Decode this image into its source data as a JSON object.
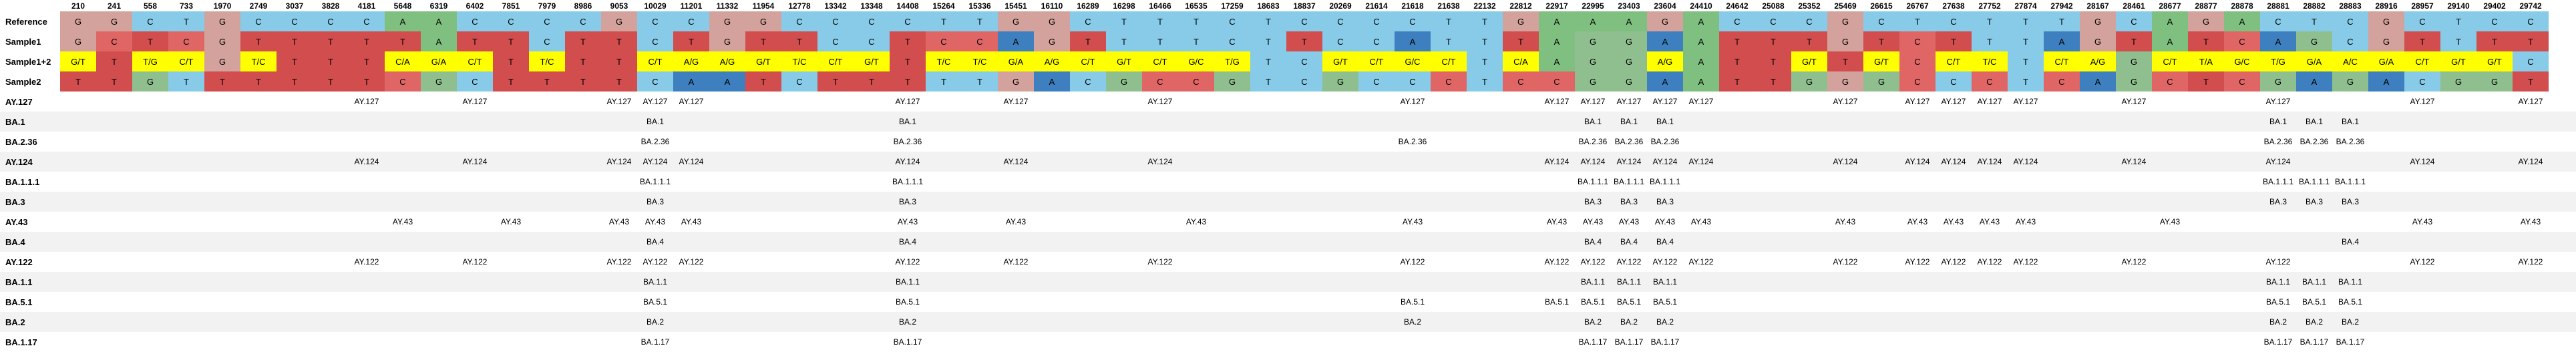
{
  "positions": [
    "210",
    "241",
    "558",
    "733",
    "1970",
    "2749",
    "3037",
    "3828",
    "4181",
    "5648",
    "6319",
    "6402",
    "7851",
    "7979",
    "8986",
    "9053",
    "10029",
    "11201",
    "11332",
    "11954",
    "12778",
    "13342",
    "13348",
    "14408",
    "15264",
    "15336",
    "15451",
    "16110",
    "16289",
    "16298",
    "16466",
    "16535",
    "17259",
    "18683",
    "18837",
    "20269",
    "21614",
    "21618",
    "21638",
    "22132",
    "22812",
    "22917",
    "22995",
    "23403",
    "23604",
    "24410",
    "24642",
    "25088",
    "25352",
    "25469",
    "26615",
    "26767",
    "27638",
    "27752",
    "27874",
    "27942",
    "28167",
    "28461",
    "28677",
    "28877",
    "28878",
    "28881",
    "28882",
    "28883",
    "28916",
    "28957",
    "29140",
    "29402",
    "29742"
  ],
  "colors": {
    "G": "#d4a29c",
    "C": "#87cbe8",
    "T": "#87cbe8",
    "A": "#7fbf7f",
    "het": "#ffff00",
    "mutA": "#3d7fbf",
    "mutAlt": "#8fbf8f",
    "mutC": "#e06666",
    "mutT": "#d24d4d"
  },
  "sequence_rows": [
    {
      "label": "Reference",
      "cells": [
        "G",
        "G",
        "C",
        "T",
        "G",
        "C",
        "C",
        "C",
        "C",
        "A",
        "A",
        "C",
        "C",
        "C",
        "C",
        "G",
        "C",
        "C",
        "G",
        "G",
        "C",
        "C",
        "C",
        "C",
        "T",
        "T",
        "G",
        "G",
        "C",
        "T",
        "T",
        "T",
        "C",
        "T",
        "C",
        "C",
        "C",
        "C",
        "T",
        "T",
        "G",
        "A",
        "A",
        "A",
        "G",
        "A",
        "C",
        "C",
        "C",
        "G",
        "C",
        "T",
        "C",
        "T",
        "T",
        "T",
        "G",
        "C",
        "A",
        "G",
        "A",
        "C",
        "T",
        "C",
        "G",
        "C",
        "T",
        "C",
        "C"
      ]
    },
    {
      "label": "Sample1",
      "cells": [
        "G",
        "C",
        "T",
        "C",
        "G",
        "T",
        "T",
        "T",
        "T",
        "T",
        "A",
        "T",
        "T",
        "C",
        "T",
        "T",
        "C",
        "T",
        "G",
        "T",
        "T",
        "C",
        "C",
        "T",
        "C",
        "C",
        "A",
        "G",
        "T",
        "T",
        "T",
        "T",
        "C",
        "T",
        "T",
        "C",
        "C",
        "A",
        "T",
        "T",
        "T",
        "A",
        "G",
        "G",
        "A",
        "A",
        "T",
        "T",
        "T",
        "G",
        "T",
        "C",
        "T",
        "T",
        "T",
        "A",
        "G",
        "T",
        "A",
        "T",
        "C",
        "A",
        "G",
        "C",
        "G",
        "T",
        "T",
        "T",
        "T"
      ]
    },
    {
      "label": "Sample1+2",
      "cells": [
        "G/T",
        "T",
        "T/G",
        "C/T",
        "G",
        "T/C",
        "T",
        "T",
        "T",
        "C/A",
        "G/A",
        "C/T",
        "T",
        "T/C",
        "T",
        "T",
        "C/T",
        "A/G",
        "A/G",
        "G/T",
        "T/C",
        "C/T",
        "G/T",
        "T",
        "T/C",
        "T/C",
        "G/A",
        "A/G",
        "C/T",
        "G/T",
        "C/T",
        "G/C",
        "T/G",
        "T",
        "C",
        "G/T",
        "C/T",
        "G/C",
        "C/T",
        "T",
        "C/A",
        "A",
        "G",
        "G",
        "A/G",
        "A",
        "T",
        "T",
        "G/T",
        "T",
        "G/T",
        "C",
        "C/T",
        "T/C",
        "T",
        "C/T",
        "A/G",
        "G",
        "C/T",
        "T/A",
        "G/C",
        "T/G",
        "G/A",
        "A/C",
        "G/A",
        "C/T",
        "G/T",
        "G/T",
        "C"
      ]
    },
    {
      "label": "Sample2",
      "cells": [
        "T",
        "T",
        "G",
        "T",
        "T",
        "T",
        "T",
        "T",
        "T",
        "C",
        "G",
        "C",
        "T",
        "T",
        "T",
        "T",
        "C",
        "A",
        "A",
        "T",
        "C",
        "T",
        "T",
        "T",
        "T",
        "T",
        "G",
        "A",
        "C",
        "G",
        "C",
        "C",
        "G",
        "T",
        "C",
        "G",
        "C",
        "C",
        "C",
        "T",
        "C",
        "C",
        "G",
        "G",
        "A",
        "A",
        "T",
        "T",
        "G",
        "G",
        "G",
        "C",
        "C",
        "C",
        "T",
        "C",
        "A",
        "G",
        "C",
        "T",
        "C",
        "G",
        "A",
        "G",
        "A",
        "C",
        "G",
        "G",
        "T"
      ]
    }
  ],
  "lineage_rows": [
    {
      "label": "AY.127",
      "values": [
        "",
        "",
        "",
        "",
        "",
        "",
        "",
        "",
        "AY.127",
        "",
        "",
        "AY.127",
        "",
        "",
        "",
        "AY.127",
        "AY.127",
        "AY.127",
        "",
        "",
        "",
        "",
        "",
        "AY.127",
        "",
        "",
        "AY.127",
        "",
        "",
        "",
        "AY.127",
        "",
        "",
        "",
        "",
        "",
        "",
        "AY.127",
        "",
        "",
        "",
        "AY.127",
        "AY.127",
        "AY.127",
        "AY.127",
        "AY.127",
        "",
        "",
        "",
        "AY.127",
        "",
        "AY.127",
        "AY.127",
        "AY.127",
        "AY.127",
        "",
        "",
        "AY.127",
        "",
        "",
        "",
        "AY.127",
        "",
        "",
        "",
        "AY.127",
        "",
        "",
        "AY.127"
      ]
    },
    {
      "label": "BA.1",
      "values": [
        "",
        "",
        "",
        "",
        "",
        "",
        "",
        "",
        "",
        "",
        "",
        "",
        "",
        "",
        "",
        "",
        "BA.1",
        "",
        "",
        "",
        "",
        "",
        "",
        "BA.1",
        "",
        "",
        "",
        "",
        "",
        "",
        "",
        "",
        "",
        "",
        "",
        "",
        "",
        "",
        "",
        "",
        "",
        "",
        "BA.1",
        "BA.1",
        "BA.1",
        "",
        "",
        "",
        "",
        "",
        "",
        "",
        "",
        "",
        "",
        "",
        "",
        "",
        "",
        "",
        "",
        "BA.1",
        "BA.1",
        "BA.1",
        "",
        "",
        "",
        "",
        ""
      ]
    },
    {
      "label": "BA.2.36",
      "values": [
        "",
        "",
        "",
        "",
        "",
        "",
        "",
        "",
        "",
        "",
        "",
        "",
        "",
        "",
        "",
        "",
        "BA.2.36",
        "",
        "",
        "",
        "",
        "",
        "",
        "BA.2.36",
        "",
        "",
        "",
        "",
        "",
        "",
        "",
        "",
        "",
        "",
        "",
        "",
        "",
        "BA.2.36",
        "",
        "",
        "",
        "",
        "BA.2.36",
        "BA.2.36",
        "BA.2.36",
        "",
        "",
        "",
        "",
        "",
        "",
        "",
        "",
        "",
        "",
        "",
        "",
        "",
        "",
        "",
        "",
        "BA.2.36",
        "BA.2.36",
        "BA.2.36",
        "",
        "",
        "",
        "",
        ""
      ]
    },
    {
      "label": "AY.124",
      "values": [
        "",
        "",
        "",
        "",
        "",
        "",
        "",
        "",
        "AY.124",
        "",
        "",
        "AY.124",
        "",
        "",
        "",
        "AY.124",
        "AY.124",
        "AY.124",
        "",
        "",
        "",
        "",
        "",
        "AY.124",
        "",
        "",
        "AY.124",
        "",
        "",
        "",
        "AY.124",
        "",
        "",
        "",
        "",
        "",
        "",
        "",
        "",
        "",
        "",
        "AY.124",
        "AY.124",
        "AY.124",
        "AY.124",
        "AY.124",
        "",
        "",
        "",
        "AY.124",
        "",
        "AY.124",
        "AY.124",
        "AY.124",
        "AY.124",
        "",
        "",
        "AY.124",
        "",
        "",
        "",
        "AY.124",
        "",
        "",
        "",
        "AY.124",
        "",
        "",
        "AY.124"
      ]
    },
    {
      "label": "BA.1.1.1",
      "values": [
        "",
        "",
        "",
        "",
        "",
        "",
        "",
        "",
        "",
        "",
        "",
        "",
        "",
        "",
        "",
        "",
        "BA.1.1.1",
        "",
        "",
        "",
        "",
        "",
        "",
        "BA.1.1.1",
        "",
        "",
        "",
        "",
        "",
        "",
        "",
        "",
        "",
        "",
        "",
        "",
        "",
        "",
        "",
        "",
        "",
        "",
        "BA.1.1.1",
        "BA.1.1.1",
        "BA.1.1.1",
        "",
        "",
        "",
        "",
        "",
        "",
        "",
        "",
        "",
        "",
        "",
        "",
        "",
        "",
        "",
        "",
        "BA.1.1.1",
        "BA.1.1.1",
        "BA.1.1.1",
        "",
        "",
        "",
        "",
        ""
      ]
    },
    {
      "label": "BA.3",
      "values": [
        "",
        "",
        "",
        "",
        "",
        "",
        "",
        "",
        "",
        "",
        "",
        "",
        "",
        "",
        "",
        "",
        "BA.3",
        "",
        "",
        "",
        "",
        "",
        "",
        "BA.3",
        "",
        "",
        "",
        "",
        "",
        "",
        "",
        "",
        "",
        "",
        "",
        "",
        "",
        "",
        "",
        "",
        "",
        "",
        "BA.3",
        "BA.3",
        "BA.3",
        "",
        "",
        "",
        "",
        "",
        "",
        "",
        "",
        "",
        "",
        "",
        "",
        "",
        "",
        "",
        "",
        "BA.3",
        "BA.3",
        "BA.3",
        "",
        "",
        "",
        "",
        ""
      ]
    },
    {
      "label": "AY.43",
      "values": [
        "",
        "",
        "",
        "",
        "",
        "",
        "",
        "",
        "",
        "AY.43",
        "",
        "",
        "AY.43",
        "",
        "",
        "AY.43",
        "AY.43",
        "AY.43",
        "",
        "",
        "",
        "",
        "",
        "AY.43",
        "",
        "",
        "AY.43",
        "",
        "",
        "",
        "",
        "AY.43",
        "",
        "",
        "",
        "",
        "",
        "AY.43",
        "",
        "",
        "",
        "AY.43",
        "AY.43",
        "AY.43",
        "AY.43",
        "AY.43",
        "",
        "",
        "",
        "AY.43",
        "",
        "AY.43",
        "AY.43",
        "AY.43",
        "AY.43",
        "",
        "",
        "",
        "AY.43",
        "",
        "",
        "",
        "",
        "",
        "",
        "AY.43",
        "",
        "",
        "AY.43"
      ]
    },
    {
      "label": "BA.4",
      "values": [
        "",
        "",
        "",
        "",
        "",
        "",
        "",
        "",
        "",
        "",
        "",
        "",
        "",
        "",
        "",
        "",
        "BA.4",
        "",
        "",
        "",
        "",
        "",
        "",
        "BA.4",
        "",
        "",
        "",
        "",
        "",
        "",
        "",
        "",
        "",
        "",
        "",
        "",
        "",
        "",
        "",
        "",
        "",
        "",
        "BA.4",
        "BA.4",
        "BA.4",
        "",
        "",
        "",
        "",
        "",
        "",
        "",
        "",
        "",
        "",
        "",
        "",
        "",
        "",
        "",
        "",
        "",
        "",
        "BA.4",
        "",
        "",
        "",
        "",
        ""
      ]
    },
    {
      "label": "AY.122",
      "values": [
        "",
        "",
        "",
        "",
        "",
        "",
        "",
        "",
        "AY.122",
        "",
        "",
        "AY.122",
        "",
        "",
        "",
        "AY.122",
        "AY.122",
        "AY.122",
        "",
        "",
        "",
        "",
        "",
        "AY.122",
        "",
        "",
        "AY.122",
        "",
        "",
        "",
        "AY.122",
        "",
        "",
        "",
        "",
        "",
        "",
        "AY.122",
        "",
        "",
        "",
        "AY.122",
        "AY.122",
        "AY.122",
        "AY.122",
        "AY.122",
        "",
        "",
        "",
        "AY.122",
        "",
        "AY.122",
        "AY.122",
        "AY.122",
        "AY.122",
        "",
        "",
        "AY.122",
        "",
        "",
        "",
        "AY.122",
        "",
        "",
        "",
        "AY.122",
        "",
        "",
        "AY.122"
      ]
    },
    {
      "label": "BA.1.1",
      "values": [
        "",
        "",
        "",
        "",
        "",
        "",
        "",
        "",
        "",
        "",
        "",
        "",
        "",
        "",
        "",
        "",
        "BA.1.1",
        "",
        "",
        "",
        "",
        "",
        "",
        "BA.1.1",
        "",
        "",
        "",
        "",
        "",
        "",
        "",
        "",
        "",
        "",
        "",
        "",
        "",
        "",
        "",
        "",
        "",
        "",
        "BA.1.1",
        "BA.1.1",
        "BA.1.1",
        "",
        "",
        "",
        "",
        "",
        "",
        "",
        "",
        "",
        "",
        "",
        "",
        "",
        "",
        "",
        "",
        "BA.1.1",
        "BA.1.1",
        "BA.1.1",
        "",
        "",
        "",
        "",
        ""
      ]
    },
    {
      "label": "BA.5.1",
      "values": [
        "",
        "",
        "",
        "",
        "",
        "",
        "",
        "",
        "",
        "",
        "",
        "",
        "",
        "",
        "",
        "",
        "BA.5.1",
        "",
        "",
        "",
        "",
        "",
        "",
        "BA.5.1",
        "",
        "",
        "",
        "",
        "",
        "",
        "",
        "",
        "",
        "",
        "",
        "",
        "",
        "BA.5.1",
        "",
        "",
        "",
        "BA.5.1",
        "BA.5.1",
        "BA.5.1",
        "BA.5.1",
        "",
        "",
        "",
        "",
        "",
        "",
        "",
        "",
        "",
        "",
        "",
        "",
        "",
        "",
        "",
        "",
        "BA.5.1",
        "BA.5.1",
        "BA.5.1",
        "",
        "",
        "",
        "",
        ""
      ]
    },
    {
      "label": "BA.2",
      "values": [
        "",
        "",
        "",
        "",
        "",
        "",
        "",
        "",
        "",
        "",
        "",
        "",
        "",
        "",
        "",
        "",
        "BA.2",
        "",
        "",
        "",
        "",
        "",
        "",
        "BA.2",
        "",
        "",
        "",
        "",
        "",
        "",
        "",
        "",
        "",
        "",
        "",
        "",
        "",
        "BA.2",
        "",
        "",
        "",
        "",
        "BA.2",
        "BA.2",
        "BA.2",
        "",
        "",
        "",
        "",
        "",
        "",
        "",
        "",
        "",
        "",
        "",
        "",
        "",
        "",
        "",
        "",
        "BA.2",
        "BA.2",
        "BA.2",
        "",
        "",
        "",
        "",
        ""
      ]
    },
    {
      "label": "BA.1.17",
      "values": [
        "",
        "",
        "",
        "",
        "",
        "",
        "",
        "",
        "",
        "",
        "",
        "",
        "",
        "",
        "",
        "",
        "BA.1.17",
        "",
        "",
        "",
        "",
        "",
        "",
        "BA.1.17",
        "",
        "",
        "",
        "",
        "",
        "",
        "",
        "",
        "",
        "",
        "",
        "",
        "",
        "",
        "",
        "",
        "",
        "",
        "BA.1.17",
        "BA.1.17",
        "BA.1.17",
        "",
        "",
        "",
        "",
        "",
        "",
        "",
        "",
        "",
        "",
        "",
        "",
        "",
        "",
        "",
        "",
        "BA.1.17",
        "BA.1.17",
        "BA.1.17",
        "",
        "",
        "",
        "",
        ""
      ]
    }
  ]
}
